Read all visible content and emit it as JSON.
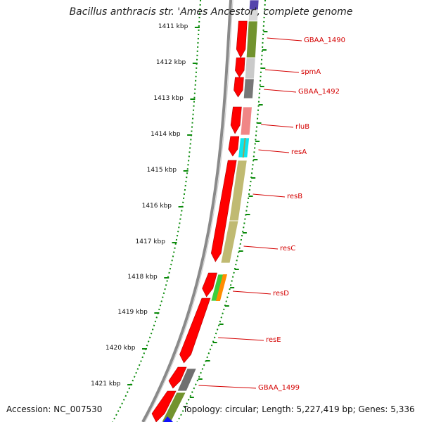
{
  "title": "Bacillus anthracis str. 'Ames Ancestor', complete genome",
  "footer": {
    "accession": "Accession: NC_007530",
    "topology": "Topology: circular; Length: 5,227,419 bp; Genes: 5,336"
  },
  "scale_labels": [
    "1411 kbp",
    "1412 kbp",
    "1413 kbp",
    "1414 kbp",
    "1415 kbp",
    "1416 kbp",
    "1417 kbp",
    "1418 kbp",
    "1419 kbp",
    "1420 kbp",
    "1421 kbp"
  ],
  "genes": [
    {
      "label": "GBAA_1490",
      "color": "#6b8e23"
    },
    {
      "label": "spmA",
      "color": "#c8c8c8"
    },
    {
      "label": "GBAA_1492",
      "color": "#707070"
    },
    {
      "label": "rluB",
      "color": "#f08080"
    },
    {
      "label": "resA",
      "color": "#00e5ee"
    },
    {
      "label": "resB",
      "color": "#bdb76b"
    },
    {
      "label": "resC",
      "color": "#bdb76b"
    },
    {
      "label": "resD",
      "color": "#32cd32"
    },
    {
      "label": "resE",
      "color": "#ff0000"
    },
    {
      "label": "GBAA_1499",
      "color": "#696969"
    }
  ],
  "colors": {
    "cds_arrow": "#ff0000",
    "backbone": "#8a8a8a",
    "tick_ruler": "#0a8a0a",
    "label_text": "#d40000"
  }
}
